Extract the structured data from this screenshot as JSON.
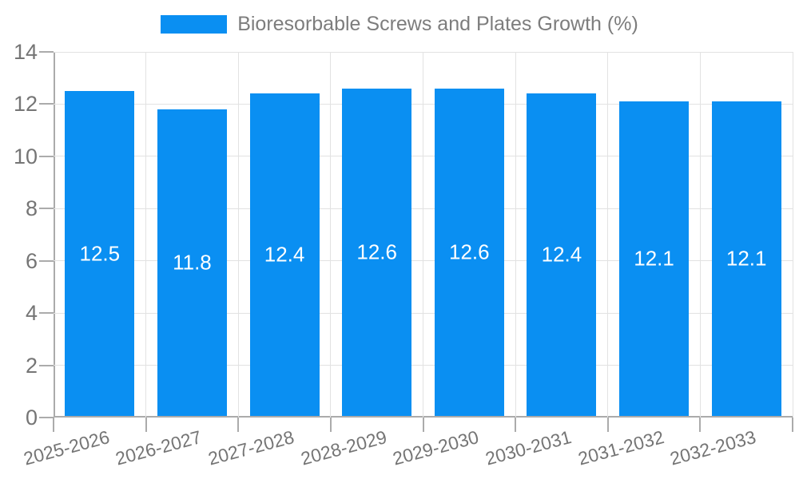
{
  "chart_data": {
    "type": "bar",
    "legend_label": "Bioresorbable Screws and Plates Growth (%)",
    "legend_position": "top",
    "categories": [
      "2025-2026",
      "2026-2027",
      "2027-2028",
      "2028-2029",
      "2029-2030",
      "2030-2031",
      "2031-2032",
      "2032-2033"
    ],
    "values": [
      12.5,
      11.8,
      12.4,
      12.6,
      12.6,
      12.4,
      12.1,
      12.1
    ],
    "value_labels": [
      "12.5",
      "11.8",
      "12.4",
      "12.6",
      "12.6",
      "12.4",
      "12.1",
      "12.1"
    ],
    "xlabel": "",
    "ylabel": "",
    "ylim": [
      0,
      14
    ],
    "yticks": [
      0,
      2,
      4,
      6,
      8,
      10,
      12,
      14
    ],
    "grid": true
  },
  "colors": {
    "bar": "#0a8ff2",
    "bar_value_text": "#ffffff",
    "axis": "#ababab",
    "gridline": "#e2e2e2",
    "tick_label": "#757575",
    "legend_text": "#7d7d7d"
  }
}
